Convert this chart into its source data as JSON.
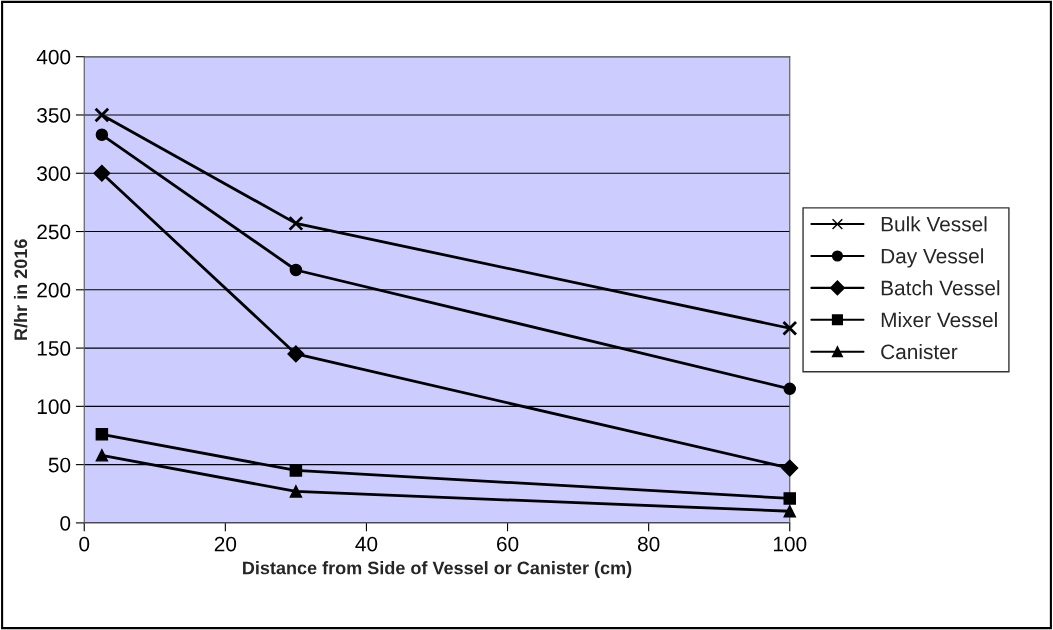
{
  "chart_data": {
    "type": "line",
    "xlabel": "Distance from Side of Vessel or Canister (cm)",
    "ylabel": "R/hr in 2016",
    "x": [
      2.5,
      30,
      100
    ],
    "series": [
      {
        "name": "Bulk Vessel",
        "color": "#000000",
        "marker": "cross",
        "values": [
          350,
          257,
          167
        ]
      },
      {
        "name": "Day Vessel",
        "color": "#000000",
        "marker": "circle",
        "values": [
          333,
          217,
          115
        ]
      },
      {
        "name": "Batch Vessel",
        "color": "#000000",
        "marker": "diamond",
        "values": [
          300,
          145,
          47
        ]
      },
      {
        "name": "Mixer Vessel",
        "color": "#000000",
        "marker": "square",
        "values": [
          76,
          45,
          21
        ]
      },
      {
        "name": "Canister",
        "color": "#000000",
        "marker": "triangle",
        "values": [
          58,
          27,
          10
        ]
      }
    ],
    "xlim": [
      0,
      100
    ],
    "xticks": [
      0,
      20,
      40,
      60,
      80,
      100
    ],
    "ylim": [
      0,
      400
    ],
    "yticks": [
      0,
      50,
      100,
      150,
      200,
      250,
      300,
      350,
      400
    ],
    "grid": "y",
    "legend": "right",
    "line_style": "solid"
  }
}
